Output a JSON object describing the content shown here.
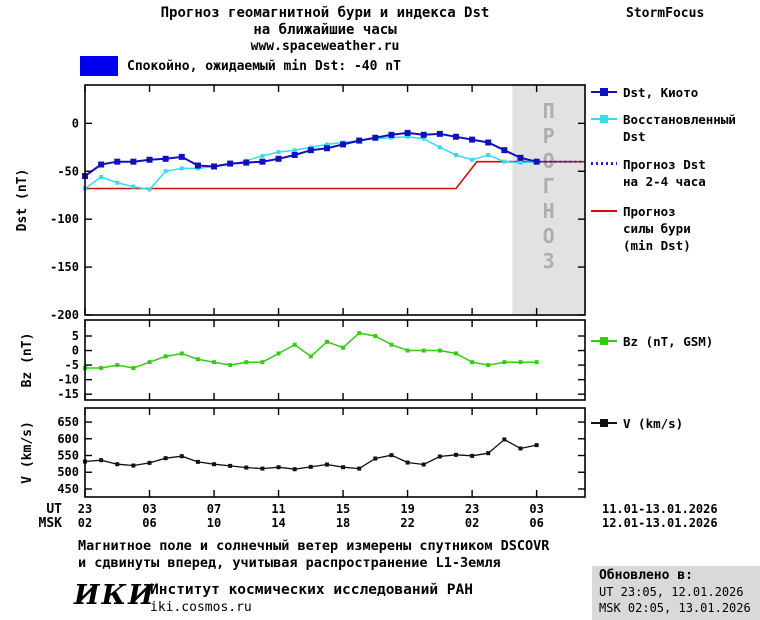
{
  "header": {
    "title_line1": "Прогноз геомагнитной бури и индекса Dst",
    "title_line2": "на ближайшие часы",
    "website": "www.spaceweather.ru",
    "brand": "StormFocus"
  },
  "banner": {
    "label": "Спокойно, ожидаемый min Dst: -40 nT",
    "swatch_color": "#0000ee"
  },
  "forecast_region_label": "ПРОГНОЗ",
  "legend": {
    "dst_kyoto": {
      "label": "Dst, Киото",
      "color": "#1111bb"
    },
    "restored": {
      "label": "Восстановленный\nDst",
      "color": "#35dced"
    },
    "forecast_dst": {
      "label": "Прогноз Dst\nна 2-4 часа",
      "color": "#2222cc"
    },
    "storm_force": {
      "label": "Прогноз\nсилы бури\n(min Dst)",
      "color": "#cc1111"
    },
    "bz": {
      "label": "Bz (nT, GSM)",
      "color": "#33cc11"
    },
    "v": {
      "label": "V (km/s)",
      "color": "#111111"
    }
  },
  "xaxis": {
    "ut_label": "UT",
    "msk_label": "MSK",
    "tick_hours": [
      0,
      4,
      8,
      12,
      16,
      20,
      24,
      28
    ],
    "ut_ticks": [
      "23",
      "03",
      "07",
      "11",
      "15",
      "19",
      "23",
      "03"
    ],
    "msk_ticks": [
      "02",
      "06",
      "10",
      "14",
      "18",
      "22",
      "02",
      "06"
    ],
    "ut_date_range": "11.01-13.01.2026",
    "msk_date_range": "12.01-13.01.2026"
  },
  "chart_data": [
    {
      "type": "line",
      "name": "dst",
      "ylabel": "Dst (nT)",
      "ylim": [
        -200,
        40
      ],
      "yticks": [
        0,
        -50,
        -100,
        -150,
        -200
      ],
      "xlim": [
        0,
        31
      ],
      "forecast_region": {
        "x_start": 26.5,
        "x_end": 31
      },
      "series": [
        {
          "key": "storm-min-dst",
          "name": "Прогноз силы бури (min Dst)",
          "color": "#cc1111",
          "width": 1.6,
          "x": [
            0,
            23,
            24.3,
            31
          ],
          "values": [
            -68,
            -68,
            -40,
            -40
          ]
        },
        {
          "key": "forecast-dst",
          "name": "Прогноз Dst на 2-4 часа",
          "color": "#2222cc",
          "width": 2,
          "dashed": true,
          "x": [
            26,
            31
          ],
          "values": [
            -40,
            -40
          ]
        },
        {
          "key": "restored-dst",
          "name": "Восстановленный Dst",
          "color": "#35dced",
          "width": 1.5,
          "marker": true,
          "marker_size": 4,
          "x_start": 0,
          "x_step": 1,
          "values": [
            -68,
            -56,
            -62,
            -66,
            -69,
            -50,
            -47,
            -47,
            -45,
            -43,
            -39,
            -34,
            -30,
            -28,
            -25,
            -22,
            -20,
            -18,
            -16,
            -15,
            -14,
            -16,
            -25,
            -33,
            -38,
            -33,
            -40,
            -41,
            -40
          ]
        },
        {
          "key": "dst-kyoto",
          "name": "Dst, Киото",
          "color": "#1111bb",
          "width": 2,
          "marker": true,
          "marker_size": 6,
          "x_start": 0,
          "x_step": 1,
          "values": [
            -55,
            -43,
            -40,
            -40,
            -38,
            -37,
            -35,
            -44,
            -45,
            -42,
            -41,
            -40,
            -37,
            -33,
            -28,
            -26,
            -22,
            -18,
            -15,
            -12,
            -10,
            -12,
            -11,
            -14,
            -17,
            -20,
            -28,
            -36,
            -40
          ]
        }
      ]
    },
    {
      "type": "line",
      "name": "bz",
      "ylabel": "Bz (nT)",
      "ylim": [
        -17,
        10.5
      ],
      "yticks": [
        5,
        0,
        -5,
        -10,
        -15
      ],
      "xlim": [
        0,
        31
      ],
      "series": [
        {
          "key": "bz",
          "name": "Bz (nT, GSM)",
          "color": "#33cc11",
          "width": 1.5,
          "marker": true,
          "marker_size": 4,
          "x_start": 0,
          "x_step": 1,
          "values": [
            -6,
            -6,
            -5,
            -6,
            -4,
            -2,
            -1,
            -3,
            -4,
            -5,
            -4,
            -4,
            -1,
            2,
            -2,
            3,
            1,
            6,
            5,
            2,
            0,
            0,
            0,
            -1,
            -4,
            -5,
            -4,
            -4,
            -4
          ]
        }
      ]
    },
    {
      "type": "line",
      "name": "v",
      "ylabel": "V (km/s)",
      "ylim": [
        426,
        692
      ],
      "yticks": [
        650,
        600,
        550,
        500,
        450
      ],
      "xlim": [
        0,
        31
      ],
      "series": [
        {
          "key": "v",
          "name": "V (km/s)",
          "color": "#111111",
          "width": 1.3,
          "marker": true,
          "marker_size": 4,
          "x_start": 0,
          "x_step": 1,
          "values": [
            532,
            536,
            524,
            520,
            528,
            542,
            548,
            531,
            524,
            519,
            514,
            511,
            515,
            509,
            516,
            523,
            515,
            511,
            541,
            551,
            529,
            523,
            547,
            552,
            549,
            557,
            598,
            571,
            581
          ]
        }
      ]
    }
  ],
  "footnote_line1": "Магнитное поле и солнечный ветер измерены спутником DSCOVR",
  "footnote_line2": "и сдвинуты вперед, учитывая распространение L1-Земля",
  "footer": {
    "logo": "ИКИ",
    "institute": "Институт космических исследований РАН",
    "website": "iki.cosmos.ru",
    "updated_label": "Обновлено в:",
    "updated_ut": "UT  23:05, 12.01.2026",
    "updated_msk": "MSK 02:05, 13.01.2026"
  }
}
